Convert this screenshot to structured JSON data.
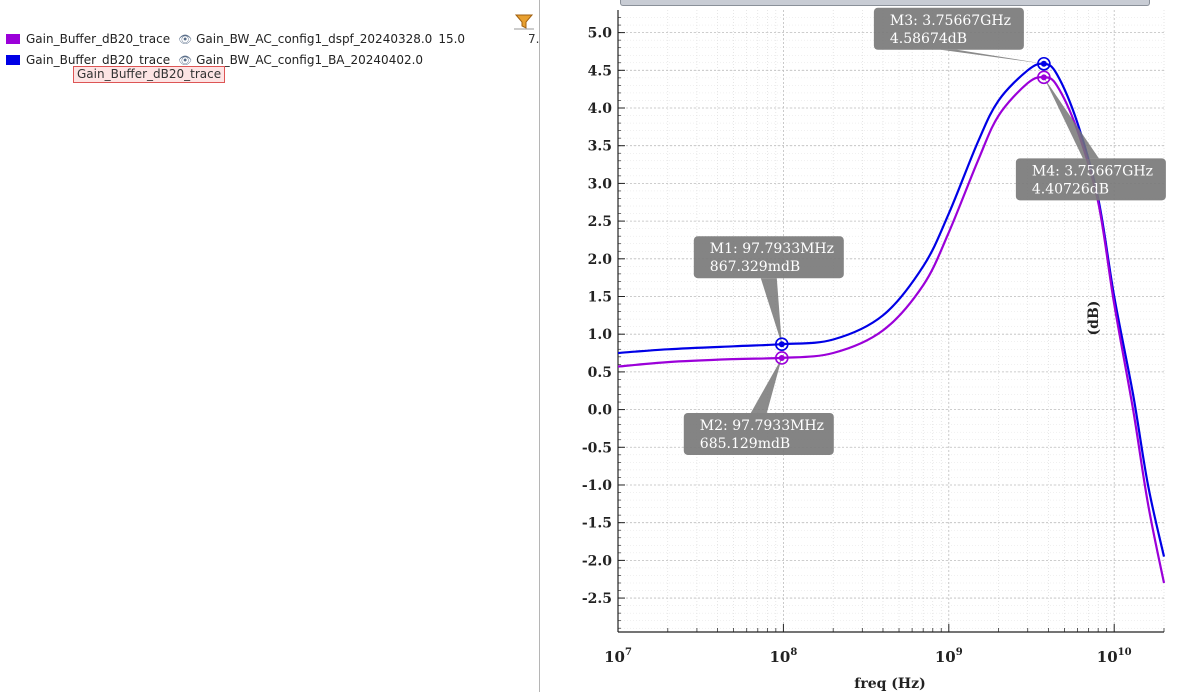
{
  "legend": {
    "entries": [
      {
        "trace": "Gain_Buffer_dB20_trace",
        "dataset": "Gain_BW_AC_config1_dspf_20240328.0",
        "extra": "15.0",
        "color": "#9b00d9"
      },
      {
        "trace": "Gain_Buffer_dB20_trace",
        "dataset": "Gain_BW_AC_config1_BA_20240402.0",
        "extra": "",
        "color": "#0000e6"
      }
    ],
    "tooltip": "Gain_Buffer_dB20_trace",
    "truncated_value": "7."
  },
  "chart_data": {
    "type": "line",
    "xscale": "log",
    "xlabel": "freq (Hz)",
    "ylabel": "(dB)",
    "xlim": [
      10000000,
      20000000000
    ],
    "ylim": [
      -2.95,
      5.3
    ],
    "xticks": [
      {
        "v": 10000000,
        "base": "10",
        "exp": "7"
      },
      {
        "v": 100000000,
        "base": "10",
        "exp": "8"
      },
      {
        "v": 1000000000,
        "base": "10",
        "exp": "9"
      },
      {
        "v": 10000000000,
        "base": "10",
        "exp": "10"
      }
    ],
    "yticks": [
      "5.0",
      "4.5",
      "4.0",
      "3.5",
      "3.0",
      "2.5",
      "2.0",
      "1.5",
      "1.0",
      "0.5",
      "0.0",
      "-0.5",
      "-1.0",
      "-1.5",
      "-2.0",
      "-2.5"
    ],
    "grid": true,
    "series": [
      {
        "name": "Gain_BW_AC_config1_BA_20240402.0",
        "color": "#0000e6",
        "x": [
          10000000,
          20000000,
          50000000,
          97793300,
          200000000,
          400000000,
          700000000,
          1000000000,
          1500000000,
          2000000000,
          3000000000,
          3756670000,
          4500000000,
          6000000000,
          8000000000,
          10000000000,
          13000000000,
          16000000000,
          20000000000
        ],
        "y": [
          0.75,
          0.8,
          0.84,
          0.867,
          0.93,
          1.25,
          1.9,
          2.6,
          3.55,
          4.1,
          4.5,
          4.587,
          4.45,
          3.8,
          2.8,
          1.5,
          0.2,
          -1.0,
          -1.95
        ]
      },
      {
        "name": "Gain_BW_AC_config1_dspf_20240328.0",
        "color": "#9b00d9",
        "x": [
          10000000,
          20000000,
          50000000,
          97793300,
          200000000,
          400000000,
          700000000,
          1000000000,
          1500000000,
          2000000000,
          3000000000,
          3756670000,
          4500000000,
          6000000000,
          8000000000,
          10000000000,
          13000000000,
          16000000000,
          20000000000
        ],
        "y": [
          0.57,
          0.63,
          0.67,
          0.685,
          0.75,
          1.05,
          1.65,
          2.35,
          3.3,
          3.9,
          4.33,
          4.407,
          4.3,
          3.7,
          2.75,
          1.4,
          0.0,
          -1.25,
          -2.3
        ]
      }
    ],
    "markers": [
      {
        "id": "M1",
        "label": "M1: 97.7933MHz",
        "value": "867.329mdB",
        "x": 97793300,
        "y": 0.867,
        "color": "#0000e6",
        "box_dx": -88,
        "box_dy": -108
      },
      {
        "id": "M2",
        "label": "M2: 97.7933MHz",
        "value": "685.129mdB",
        "x": 97793300,
        "y": 0.685,
        "color": "#9b00d9",
        "box_dx": -98,
        "box_dy": 55
      },
      {
        "id": "M3",
        "label": "M3: 3.75667GHz",
        "value": "4.58674dB",
        "x": 3756670000,
        "y": 4.587,
        "color": "#0000e6",
        "box_dx": -170,
        "box_dy": -56
      },
      {
        "id": "M4",
        "label": "M4: 3.75667GHz",
        "value": "4.40726dB",
        "x": 3756670000,
        "y": 4.407,
        "color": "#9b00d9",
        "box_dx": -28,
        "box_dy": 81
      }
    ]
  }
}
